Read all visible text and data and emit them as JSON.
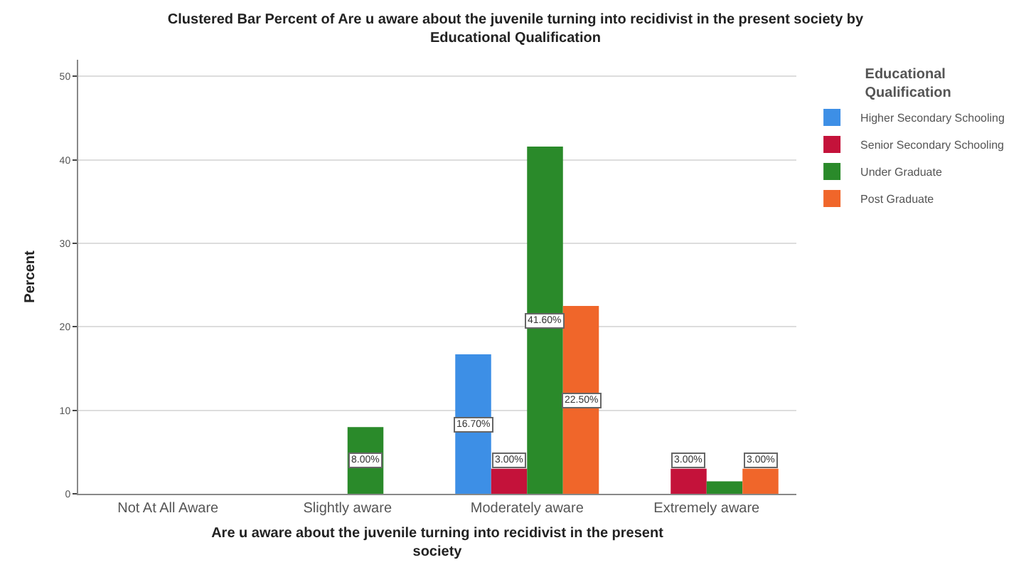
{
  "chart_data": {
    "type": "bar",
    "title": "Clustered Bar Percent of Are u aware about the juvenile turning into recidivist in the present society by Educational Qualification",
    "xlabel": "Are u aware about the juvenile turning into recidivist in the present society",
    "ylabel": "Percent",
    "legend_title": "Educational Qualification",
    "categories": [
      "Not At All Aware",
      "Slightly aware",
      "Moderately aware",
      "Extremely aware"
    ],
    "series": [
      {
        "name": "Higher Secondary Schooling",
        "color": "#3d8fe6",
        "values": [
          null,
          null,
          16.7,
          null
        ],
        "value_labels": [
          null,
          null,
          "16.70%",
          null
        ]
      },
      {
        "name": "Senior Secondary Schooling",
        "color": "#c4123a",
        "values": [
          null,
          null,
          3.0,
          3.0
        ],
        "value_labels": [
          null,
          null,
          "3.00%",
          "3.00%"
        ]
      },
      {
        "name": "Under Graduate",
        "color": "#2a8a2a",
        "values": [
          null,
          8.0,
          41.6,
          1.5
        ],
        "value_labels": [
          null,
          "8.00%",
          "41.60%",
          null
        ]
      },
      {
        "name": "Post Graduate",
        "color": "#f0662a",
        "values": [
          null,
          null,
          22.5,
          3.0
        ],
        "value_labels": [
          null,
          null,
          "22.50%",
          "3.00%"
        ]
      }
    ],
    "ylim": [
      0,
      52
    ],
    "yticks": [
      0,
      10,
      20,
      30,
      40,
      50
    ],
    "grid": "y",
    "legend": "top right"
  }
}
